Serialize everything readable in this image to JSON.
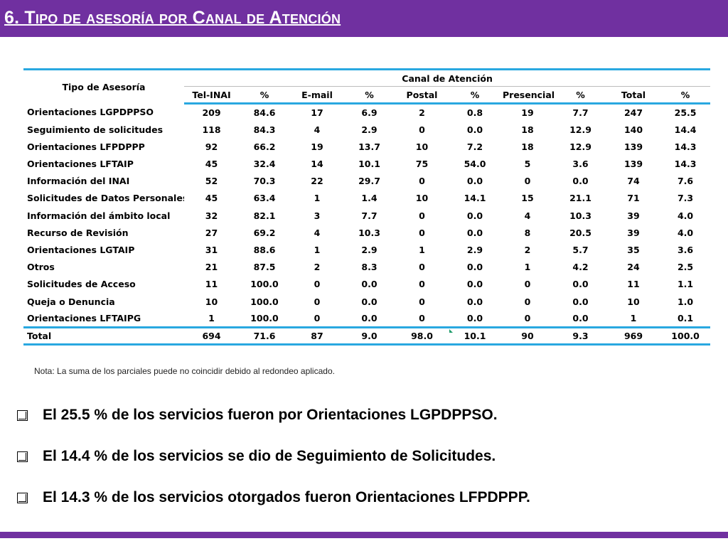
{
  "title": "6. Tipo de asesoría por Canal de Atención",
  "table": {
    "tipo_header": "Tipo de Asesoría",
    "canal_header": "Canal de Atención",
    "columns": [
      "Tel-INAI",
      "%",
      "E-mail",
      "%",
      "Postal",
      "%",
      "Presencial",
      "%",
      "Total",
      "%"
    ],
    "rows": [
      {
        "label": "Orientaciones LGPDPPSO",
        "values": [
          "209",
          "84.6",
          "17",
          "6.9",
          "2",
          "0.8",
          "19",
          "7.7",
          "247",
          "25.5"
        ]
      },
      {
        "label": "Seguimiento de solicitudes",
        "values": [
          "118",
          "84.3",
          "4",
          "2.9",
          "0",
          "0.0",
          "18",
          "12.9",
          "140",
          "14.4"
        ]
      },
      {
        "label": "Orientaciones LFPDPPP",
        "values": [
          "92",
          "66.2",
          "19",
          "13.7",
          "10",
          "7.2",
          "18",
          "12.9",
          "139",
          "14.3"
        ]
      },
      {
        "label": "Orientaciones LFTAIP",
        "values": [
          "45",
          "32.4",
          "14",
          "10.1",
          "75",
          "54.0",
          "5",
          "3.6",
          "139",
          "14.3"
        ]
      },
      {
        "label": "Información del INAI",
        "values": [
          "52",
          "70.3",
          "22",
          "29.7",
          "0",
          "0.0",
          "0",
          "0.0",
          "74",
          "7.6"
        ]
      },
      {
        "label": "Solicitudes de Datos Personales",
        "values": [
          "45",
          "63.4",
          "1",
          "1.4",
          "10",
          "14.1",
          "15",
          "21.1",
          "71",
          "7.3"
        ]
      },
      {
        "label": "Información del ámbito local",
        "values": [
          "32",
          "82.1",
          "3",
          "7.7",
          "0",
          "0.0",
          "4",
          "10.3",
          "39",
          "4.0"
        ]
      },
      {
        "label": "Recurso de Revisión",
        "values": [
          "27",
          "69.2",
          "4",
          "10.3",
          "0",
          "0.0",
          "8",
          "20.5",
          "39",
          "4.0"
        ]
      },
      {
        "label": "Orientaciones LGTAIP",
        "values": [
          "31",
          "88.6",
          "1",
          "2.9",
          "1",
          "2.9",
          "2",
          "5.7",
          "35",
          "3.6"
        ]
      },
      {
        "label": "Otros",
        "values": [
          "21",
          "87.5",
          "2",
          "8.3",
          "0",
          "0.0",
          "1",
          "4.2",
          "24",
          "2.5"
        ]
      },
      {
        "label": "Solicitudes de Acceso",
        "values": [
          "11",
          "100.0",
          "0",
          "0.0",
          "0",
          "0.0",
          "0",
          "0.0",
          "11",
          "1.1"
        ]
      },
      {
        "label": "Queja o Denuncia",
        "values": [
          "10",
          "100.0",
          "0",
          "0.0",
          "0",
          "0.0",
          "0",
          "0.0",
          "10",
          "1.0"
        ]
      },
      {
        "label": "Orientaciones LFTAIPG",
        "values": [
          "1",
          "100.0",
          "0",
          "0.0",
          "0",
          "0.0",
          "0",
          "0.0",
          "1",
          "0.1"
        ]
      }
    ],
    "total": {
      "label": "Total",
      "values": [
        "694",
        "71.6",
        "87",
        "9.0",
        "98.0",
        "10.1",
        "90",
        "9.3",
        "969",
        "100.0"
      ]
    }
  },
  "note": "Nota: La suma de los parciales puede no coincidir debido al redondeo aplicado.",
  "bullets": [
    "El 25.5 % de los servicios fueron por Orientaciones LGPDPPSO.",
    "El 14.4 % de los servicios se dio de Seguimiento de Solicitudes.",
    "El 14.3 % de los servicios otorgados fueron Orientaciones LFPDPPP."
  ],
  "colors": {
    "title_bar": "#7030a0",
    "table_rule": "#29a8e0",
    "title_text": "#ffffff"
  }
}
